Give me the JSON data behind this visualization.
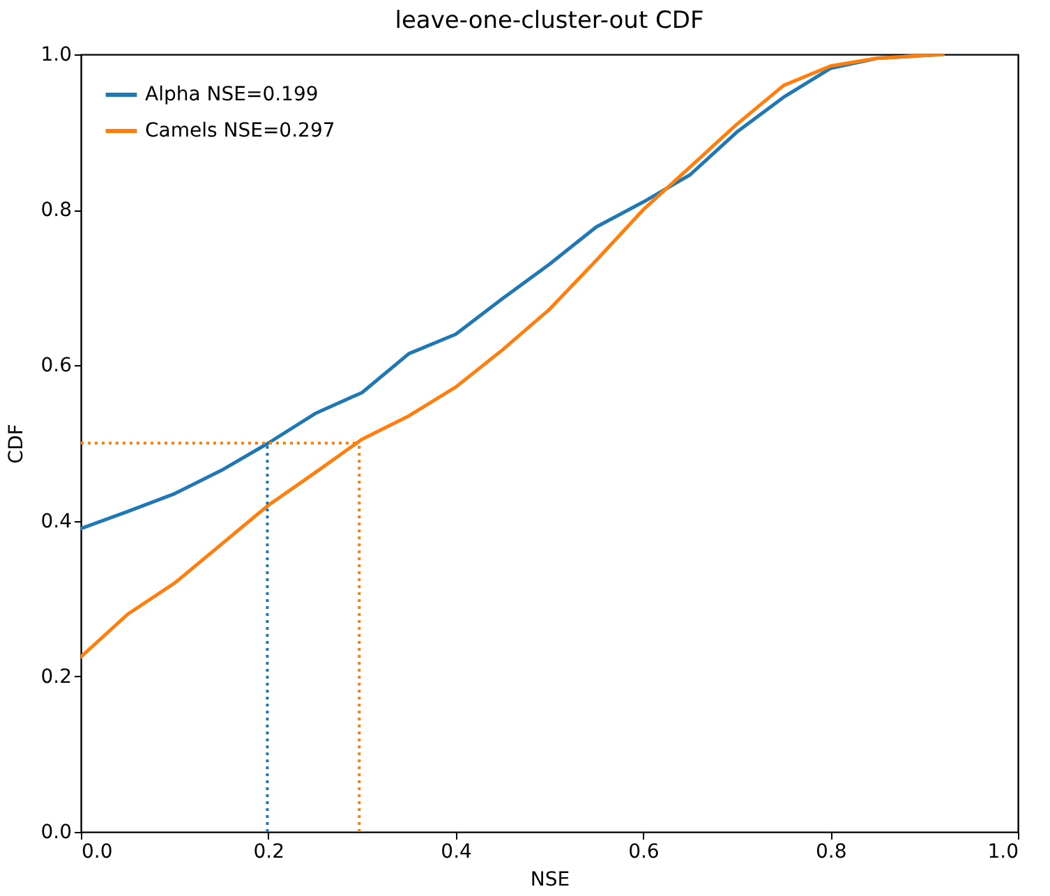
{
  "chart_data": {
    "type": "line",
    "title": "leave-one-cluster-out CDF",
    "xlabel": "NSE",
    "ylabel": "CDF",
    "xlim": [
      0,
      1
    ],
    "ylim": [
      0,
      1
    ],
    "xticks": [
      {
        "value": 0,
        "label": "0.0"
      },
      0.2,
      0.4,
      0.6,
      0.8,
      {
        "value": 1,
        "label": "1.0"
      }
    ],
    "yticks": [
      {
        "value": 0,
        "label": "0.0"
      },
      0.2,
      0.4,
      0.6,
      0.8,
      {
        "value": 1,
        "label": "1.0"
      }
    ],
    "grid": false,
    "legend": "top left",
    "marker": "none",
    "series": [
      {
        "name": "Alpha NSE=0.199",
        "color": "#1f77b4",
        "line_style": "solid",
        "x": [
          0,
          0.05,
          0.1,
          0.15,
          0.2,
          0.25,
          0.3,
          0.35,
          0.4,
          0.45,
          0.5,
          0.55,
          0.6,
          0.65,
          0.7,
          0.75,
          0.8,
          0.85,
          0.92
        ],
        "values": [
          0.39,
          0.412,
          0.435,
          0.465,
          0.5,
          0.538,
          0.565,
          0.615,
          0.64,
          0.686,
          0.73,
          0.778,
          0.81,
          0.845,
          0.9,
          0.945,
          0.982,
          0.995,
          1.0
        ]
      },
      {
        "name": "Camels NSE=0.297",
        "color": "#ff7f0e",
        "line_style": "solid",
        "x": [
          0,
          0.05,
          0.1,
          0.15,
          0.2,
          0.25,
          0.3,
          0.35,
          0.4,
          0.45,
          0.5,
          0.55,
          0.6,
          0.65,
          0.7,
          0.75,
          0.8,
          0.85,
          0.92
        ],
        "values": [
          0.225,
          0.28,
          0.32,
          0.37,
          0.42,
          0.462,
          0.505,
          0.535,
          0.572,
          0.62,
          0.672,
          0.735,
          0.8,
          0.855,
          0.91,
          0.96,
          0.985,
          0.995,
          1.0
        ]
      },
      {
        "color": "#1f77b4",
        "line_style": "dotted",
        "x": [
          0.199,
          0.199
        ],
        "values": [
          0,
          0.5
        ]
      },
      {
        "color": "#ff7f0e",
        "line_style": "dotted",
        "x": [
          0.297,
          0.297
        ],
        "values": [
          0,
          0.5
        ]
      },
      {
        "color": "#ff7f0e",
        "line_style": "dotted",
        "x": [
          0,
          0.297
        ],
        "values": [
          0.5,
          0.5
        ]
      }
    ]
  }
}
